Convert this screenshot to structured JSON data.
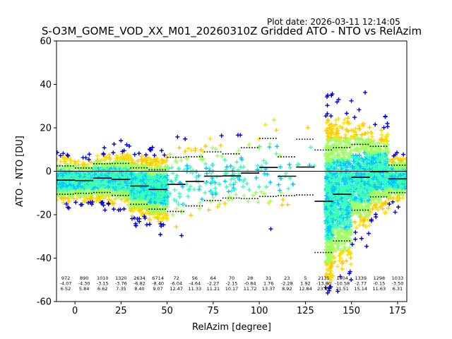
{
  "chart_data": {
    "type": "scatter",
    "title": "S-O3M_GOME_VOD_XX_M01_20260310Z Gridded ATO - NTO vs RelAzim",
    "plot_date": "Plot date: 2026-03-11 12:14:05",
    "xlabel": "RelAzim [degree]",
    "ylabel": "ATO - NTO [DU]",
    "xlim": [
      -10,
      180
    ],
    "ylim": [
      -60,
      60
    ],
    "xticks": [
      0,
      25,
      50,
      75,
      100,
      125,
      150,
      175
    ],
    "yticks": [
      -60,
      -40,
      -20,
      0,
      20,
      40,
      60
    ],
    "zero_line": 0,
    "marker": "+",
    "colors": {
      "teal": "#3dffb8",
      "cyan": "#00c8ff",
      "lightgreen": "#a0ff60",
      "yellow": "#ffe000",
      "gold": "#ffc800",
      "blue": "#0000ff",
      "navy": "#0000c0"
    },
    "bins": [
      {
        "x0": -10,
        "x1": 0,
        "count": "972",
        "mean": "-4.07",
        "std": "6.52"
      },
      {
        "x0": 0,
        "x1": 10,
        "count": "890",
        "mean": "-4.30",
        "std": "5.84"
      },
      {
        "x0": 10,
        "x1": 20,
        "count": "1010",
        "mean": "-3.15",
        "std": "6.62"
      },
      {
        "x0": 20,
        "x1": 30,
        "count": "1320",
        "mean": "-3.76",
        "std": "7.35"
      },
      {
        "x0": 30,
        "x1": 40,
        "count": "2634",
        "mean": "-6.82",
        "std": "8.40"
      },
      {
        "x0": 40,
        "x1": 50,
        "count": "6714",
        "mean": "-8.40",
        "std": "9.07"
      },
      {
        "x0": 50,
        "x1": 60,
        "count": "72",
        "mean": "-6.04",
        "std": "12.47"
      },
      {
        "x0": 60,
        "x1": 70,
        "count": "56",
        "mean": "-4.64",
        "std": "11.33"
      },
      {
        "x0": 70,
        "x1": 80,
        "count": "64",
        "mean": "-2.27",
        "std": "11.21"
      },
      {
        "x0": 80,
        "x1": 90,
        "count": "70",
        "mean": "-2.15",
        "std": "10.17"
      },
      {
        "x0": 90,
        "x1": 100,
        "count": "28",
        "mean": "-0.84",
        "std": "11.72"
      },
      {
        "x0": 100,
        "x1": 110,
        "count": "31",
        "mean": "1.76",
        "std": "13.37"
      },
      {
        "x0": 110,
        "x1": 120,
        "count": "23",
        "mean": "-2.28",
        "std": "8.92"
      },
      {
        "x0": 120,
        "x1": 130,
        "count": "5",
        "mean": "1.92",
        "std": "12.84"
      },
      {
        "x0": 130,
        "x1": 140,
        "count": "2135",
        "mean": "-13.80",
        "std": "23.60"
      },
      {
        "x0": 140,
        "x1": 150,
        "count": "1904",
        "mean": "-10.58",
        "std": "21.51"
      },
      {
        "x0": 150,
        "x1": 160,
        "count": "1339",
        "mean": "-2.77",
        "std": "15.14"
      },
      {
        "x0": 160,
        "x1": 170,
        "count": "1298",
        "mean": "-0.15",
        "std": "11.63"
      },
      {
        "x0": 170,
        "x1": 180,
        "count": "1033",
        "mean": "-3.50",
        "std": "6.31"
      }
    ]
  }
}
